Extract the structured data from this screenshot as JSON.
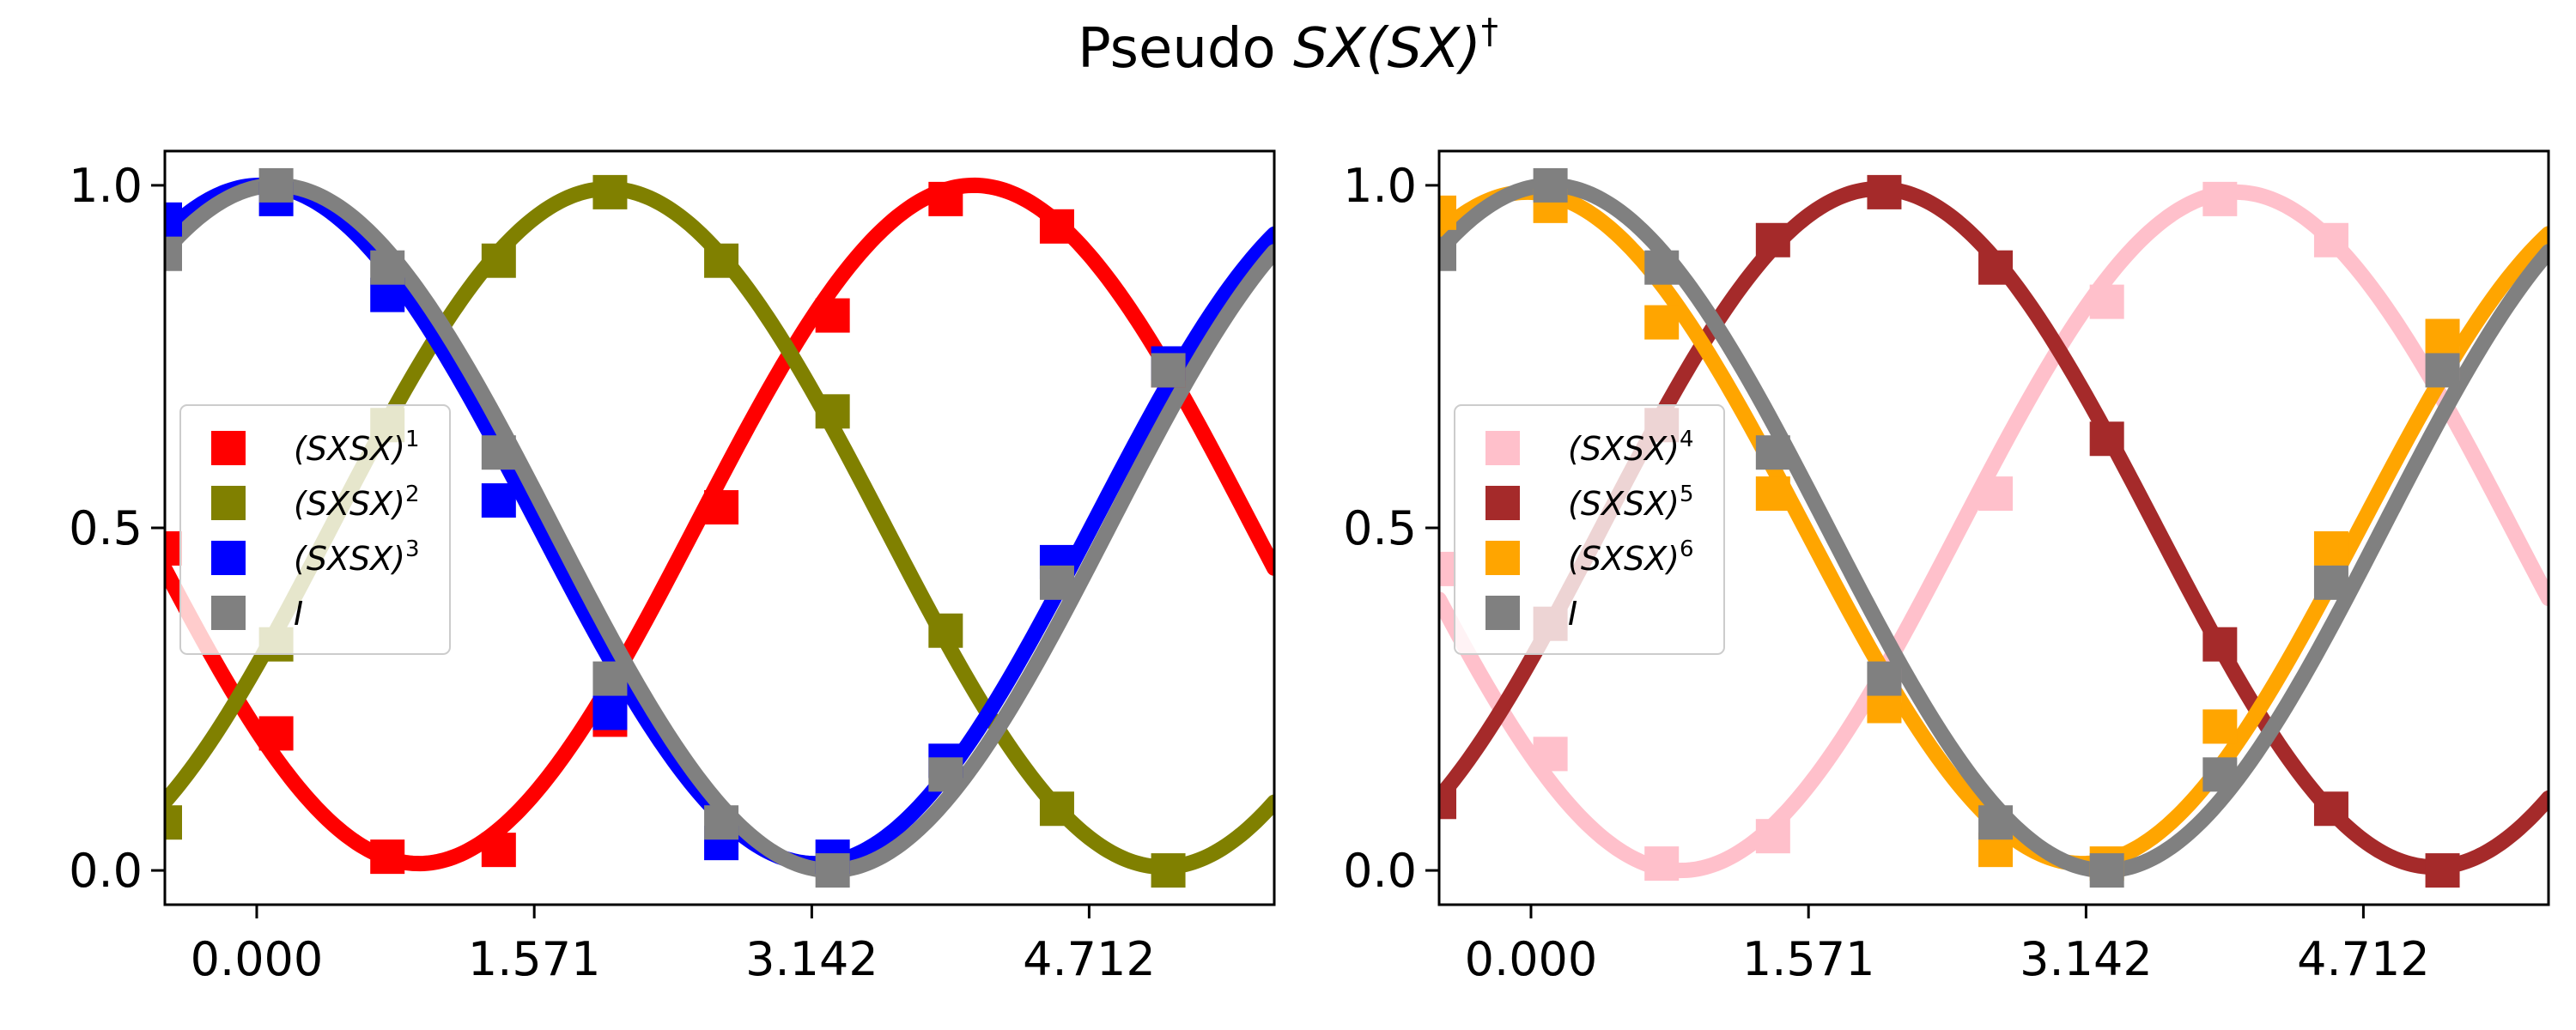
{
  "figure": {
    "title_prefix": "Pseudo ",
    "title_math": "SX(SX)",
    "title_dagger": "†"
  },
  "chart_data": [
    {
      "type": "line",
      "x_ticks": [
        0.0,
        1.571,
        3.142,
        4.712
      ],
      "x_tick_labels": [
        "0.000",
        "1.571",
        "3.142",
        "4.712"
      ],
      "y_ticks": [
        0.0,
        0.5,
        1.0
      ],
      "y_tick_labels": [
        "0.0",
        "0.5",
        "1.0"
      ],
      "xlim": [
        -0.52,
        5.76
      ],
      "ylim": [
        -0.05,
        1.05
      ],
      "legend_position": "center-left",
      "markers": "square",
      "series": [
        {
          "name": "(SXSX)1",
          "label_base": "(SXSX)",
          "label_sup": "1",
          "color": "#ff0000",
          "points": [
            [
              -0.52,
              0.47
            ],
            [
              0.11,
              0.2
            ],
            [
              0.74,
              0.02
            ],
            [
              1.37,
              0.03
            ],
            [
              2.0,
              0.22
            ],
            [
              2.63,
              0.53
            ],
            [
              3.26,
              0.81
            ],
            [
              3.9,
              0.98
            ],
            [
              4.53,
              0.94
            ],
            [
              5.16,
              0.73
            ]
          ],
          "curve": {
            "amplitude": 0.495,
            "period_scale": 1,
            "phase": 4.06,
            "offset": 0.505
          }
        },
        {
          "name": "(SXSX)2",
          "label_base": "(SXSX)",
          "label_sup": "2",
          "color": "#808000",
          "points": [
            [
              -0.52,
              0.07
            ],
            [
              0.11,
              0.33
            ],
            [
              0.74,
              0.65
            ],
            [
              1.37,
              0.89
            ],
            [
              2.0,
              0.99
            ],
            [
              2.63,
              0.89
            ],
            [
              3.26,
              0.67
            ],
            [
              3.9,
              0.35
            ],
            [
              4.53,
              0.09
            ],
            [
              5.16,
              0.0
            ]
          ],
          "curve": {
            "amplitude": 0.495,
            "period_scale": 1,
            "phase": 1.99,
            "offset": 0.5
          }
        },
        {
          "name": "(SXSX)3",
          "label_base": "(SXSX)",
          "label_sup": "3",
          "color": "#0000ff",
          "points": [
            [
              -0.52,
              0.95
            ],
            [
              0.11,
              0.98
            ],
            [
              0.74,
              0.84
            ],
            [
              1.37,
              0.54
            ],
            [
              2.0,
              0.23
            ],
            [
              2.63,
              0.04
            ],
            [
              3.26,
              0.02
            ],
            [
              3.9,
              0.16
            ],
            [
              4.53,
              0.45
            ],
            [
              5.16,
              0.74
            ]
          ],
          "curve": {
            "amplitude": 0.495,
            "period_scale": 1,
            "phase": 0.02,
            "offset": 0.505
          }
        },
        {
          "name": "I",
          "label_base": "I",
          "label_sup": "",
          "color": "#808080",
          "points": [
            [
              -0.52,
              0.9
            ],
            [
              0.11,
              1.0
            ],
            [
              0.74,
              0.88
            ],
            [
              1.37,
              0.61
            ],
            [
              2.0,
              0.28
            ],
            [
              2.63,
              0.07
            ],
            [
              3.26,
              0.0
            ],
            [
              3.9,
              0.14
            ],
            [
              4.53,
              0.42
            ],
            [
              5.16,
              0.73
            ]
          ],
          "curve": {
            "amplitude": 0.5,
            "period_scale": 1,
            "phase": 0.11,
            "offset": 0.5
          }
        }
      ]
    },
    {
      "type": "line",
      "x_ticks": [
        0.0,
        1.571,
        3.142,
        4.712
      ],
      "x_tick_labels": [
        "0.000",
        "1.571",
        "3.142",
        "4.712"
      ],
      "y_ticks": [
        0.0,
        0.5,
        1.0
      ],
      "y_tick_labels": [
        "0.0",
        "0.5",
        "1.0"
      ],
      "xlim": [
        -0.52,
        5.76
      ],
      "ylim": [
        -0.05,
        1.05
      ],
      "legend_position": "center-left",
      "markers": "square",
      "series": [
        {
          "name": "(SXSX)4",
          "label_base": "(SXSX)",
          "label_sup": "4",
          "color": "#ffc0cb",
          "points": [
            [
              -0.52,
              0.44
            ],
            [
              0.11,
              0.17
            ],
            [
              0.74,
              0.01
            ],
            [
              1.37,
              0.05
            ],
            [
              2.0,
              0.27
            ],
            [
              2.63,
              0.55
            ],
            [
              3.26,
              0.83
            ],
            [
              3.9,
              0.98
            ],
            [
              4.53,
              0.92
            ],
            [
              5.16,
              0.74
            ]
          ],
          "curve": {
            "amplitude": 0.495,
            "period_scale": 1,
            "phase": 3.99,
            "offset": 0.495
          }
        },
        {
          "name": "(SXSX)5",
          "label_base": "(SXSX)",
          "label_sup": "5",
          "color": "#a52a2a",
          "points": [
            [
              -0.52,
              0.1
            ],
            [
              0.11,
              0.36
            ],
            [
              0.74,
              0.65
            ],
            [
              1.37,
              0.92
            ],
            [
              2.0,
              0.99
            ],
            [
              2.63,
              0.88
            ],
            [
              3.26,
              0.63
            ],
            [
              3.9,
              0.33
            ],
            [
              4.53,
              0.09
            ],
            [
              5.16,
              0.0
            ]
          ],
          "curve": {
            "amplitude": 0.495,
            "period_scale": 1,
            "phase": 1.97,
            "offset": 0.5
          }
        },
        {
          "name": "(SXSX)6",
          "label_base": "(SXSX)",
          "label_sup": "6",
          "color": "#ffa500",
          "points": [
            [
              -0.52,
              0.96
            ],
            [
              0.11,
              0.97
            ],
            [
              0.74,
              0.8
            ],
            [
              1.37,
              0.55
            ],
            [
              2.0,
              0.24
            ],
            [
              2.63,
              0.03
            ],
            [
              3.26,
              0.01
            ],
            [
              3.9,
              0.21
            ],
            [
              4.53,
              0.47
            ],
            [
              5.16,
              0.78
            ]
          ],
          "curve": {
            "amplitude": 0.49,
            "period_scale": 1,
            "phase": -0.02,
            "offset": 0.5
          }
        },
        {
          "name": "I",
          "label_base": "I",
          "label_sup": "",
          "color": "#808080",
          "points": [
            [
              -0.52,
              0.9
            ],
            [
              0.11,
              1.0
            ],
            [
              0.74,
              0.88
            ],
            [
              1.37,
              0.61
            ],
            [
              2.0,
              0.28
            ],
            [
              2.63,
              0.07
            ],
            [
              3.26,
              0.0
            ],
            [
              3.9,
              0.14
            ],
            [
              4.53,
              0.42
            ],
            [
              5.16,
              0.73
            ]
          ],
          "curve": {
            "amplitude": 0.5,
            "period_scale": 1,
            "phase": 0.11,
            "offset": 0.5
          }
        }
      ]
    }
  ]
}
